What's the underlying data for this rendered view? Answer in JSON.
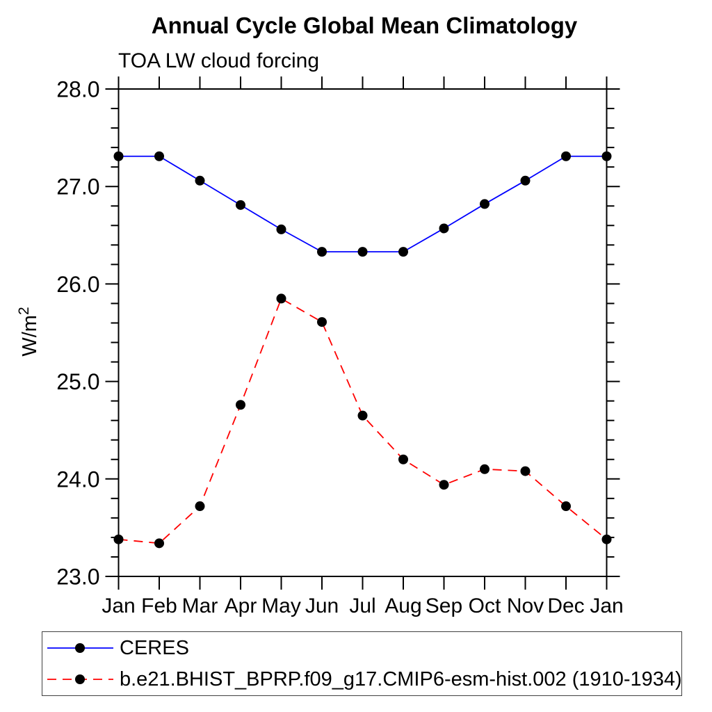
{
  "title": "Annual Cycle Global Mean Climatology",
  "subtitle": "TOA LW cloud forcing",
  "chart_data": {
    "type": "line",
    "categories": [
      "Jan",
      "Feb",
      "Mar",
      "Apr",
      "May",
      "Jun",
      "Jul",
      "Aug",
      "Sep",
      "Oct",
      "Nov",
      "Dec",
      "Jan"
    ],
    "title": "Annual Cycle Global Mean Climatology",
    "subtitle": "TOA LW cloud forcing",
    "xlabel": "",
    "ylabel": "W/m²",
    "ylim": [
      23.0,
      28.0
    ],
    "ytick_major_step": 1.0,
    "ytick_minor_step": 0.2,
    "ytick_labels": [
      "23.0",
      "24.0",
      "25.0",
      "26.0",
      "27.0",
      "28.0"
    ],
    "grid": false,
    "legend_position": "bottom-left-box",
    "frame_color": "#000000",
    "marker_color": "#000000",
    "series": [
      {
        "name": "CERES",
        "color": "#0000ff",
        "style": "solid",
        "marker": "filled-circle",
        "values": [
          27.31,
          27.31,
          27.06,
          26.81,
          26.56,
          26.33,
          26.33,
          26.33,
          26.57,
          26.82,
          27.06,
          27.31,
          27.31
        ]
      },
      {
        "name": "b.e21.BHIST_BPRP.f09_g17.CMIP6-esm-hist.002 (1910-1934)",
        "color": "#ff0000",
        "style": "dashed",
        "marker": "filled-circle",
        "values": [
          23.38,
          23.34,
          23.72,
          24.76,
          25.85,
          25.61,
          24.65,
          24.2,
          23.94,
          24.1,
          24.08,
          23.72,
          23.38
        ]
      }
    ]
  }
}
